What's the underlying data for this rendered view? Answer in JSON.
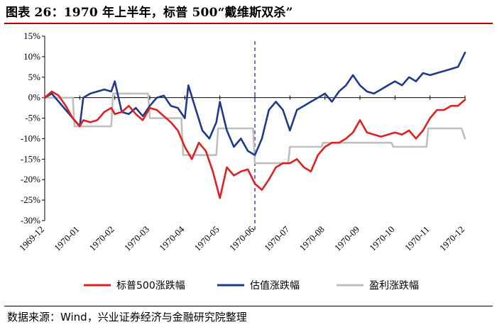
{
  "figure": {
    "title": "图表 26：1970 年上半年，标普 500“戴维斯双杀”",
    "source": "数据来源：Wind，兴业证券经济与金融研究院整理"
  },
  "chart_data": {
    "type": "line",
    "title": "",
    "xlabel": "",
    "ylabel": "",
    "x_ticks": [
      "1969-12",
      "1970-01",
      "1970-02",
      "1970-03",
      "1970-04",
      "1970-05",
      "1970-06",
      "1970-07",
      "1970-08",
      "1970-09",
      "1970-10",
      "1970-11",
      "1970-12"
    ],
    "y_ticks": [
      "15%",
      "10%",
      "5%",
      "0%",
      "-5%",
      "-10%",
      "-15%",
      "-20%",
      "-25%",
      "-30%"
    ],
    "y_unit": "%",
    "ylim": [
      -30,
      15
    ],
    "grid": false,
    "legend_position": "bottom",
    "vertical_marker": {
      "x": 6.0,
      "style": "dashed",
      "color": "#7030a0"
    },
    "series": [
      {
        "name": "标普500涨跌幅",
        "color": "#e02020",
        "x": [
          0,
          0.2,
          0.4,
          0.6,
          0.8,
          1.0,
          1.1,
          1.3,
          1.5,
          1.7,
          1.9,
          2.0,
          2.2,
          2.4,
          2.6,
          2.8,
          3.0,
          3.2,
          3.4,
          3.6,
          3.8,
          4.0,
          4.2,
          4.4,
          4.6,
          4.8,
          5.0,
          5.2,
          5.4,
          5.6,
          5.8,
          6.0,
          6.2,
          6.4,
          6.6,
          6.8,
          7.0,
          7.2,
          7.4,
          7.6,
          7.8,
          8.0,
          8.2,
          8.4,
          8.6,
          8.8,
          9.0,
          9.2,
          9.4,
          9.6,
          9.8,
          10.0,
          10.2,
          10.4,
          10.6,
          10.8,
          11.0,
          11.2,
          11.4,
          11.6,
          11.8,
          12.0
        ],
        "values": [
          0,
          1.5,
          0.5,
          -2,
          -5,
          -7,
          -5.5,
          -6,
          -5.5,
          -3.5,
          -2.5,
          -4,
          -3.5,
          -2,
          -4,
          -5.5,
          -2.5,
          -3,
          -4.5,
          -6,
          -8,
          -12,
          -15,
          -11,
          -13,
          -18,
          -24.5,
          -17,
          -19,
          -18,
          -17.5,
          -21,
          -22.5,
          -20,
          -17,
          -16,
          -16,
          -15,
          -17,
          -18,
          -14,
          -12,
          -11,
          -11,
          -10,
          -8.5,
          -5.5,
          -8.5,
          -9,
          -9.5,
          -9,
          -8.5,
          -9,
          -8,
          -10,
          -8,
          -5,
          -3,
          -3,
          -2,
          -2,
          -0.5
        ]
      },
      {
        "name": "估值涨跌幅",
        "color": "#1f3a8a",
        "x": [
          0,
          0.2,
          0.4,
          0.6,
          0.8,
          1.0,
          1.1,
          1.3,
          1.5,
          1.7,
          1.9,
          2.0,
          2.2,
          2.4,
          2.6,
          2.8,
          3.0,
          3.2,
          3.4,
          3.6,
          3.8,
          4.0,
          4.1,
          4.3,
          4.5,
          4.7,
          4.9,
          5.0,
          5.2,
          5.4,
          5.6,
          5.8,
          6.0,
          6.2,
          6.4,
          6.6,
          6.8,
          7.0,
          7.2,
          7.4,
          7.6,
          7.8,
          8.0,
          8.2,
          8.4,
          8.6,
          8.8,
          9.0,
          9.2,
          9.4,
          9.6,
          9.8,
          10.0,
          10.2,
          10.4,
          10.6,
          10.8,
          11.0,
          11.2,
          11.4,
          11.6,
          11.8,
          12.0
        ],
        "values": [
          0,
          1,
          -1,
          -3,
          -5,
          -7,
          0,
          1,
          1.5,
          2,
          1.5,
          4,
          -3.5,
          -4,
          -2.5,
          -4.5,
          -2,
          0,
          0.5,
          -2,
          -2.5,
          -5,
          3,
          -2.5,
          -8,
          -10,
          -6,
          -1,
          -8,
          -12,
          -10,
          -13,
          -14,
          -10,
          -3,
          -1,
          -3,
          -8,
          -3,
          -2,
          -1,
          0,
          1,
          -1,
          1.5,
          3,
          5.5,
          3,
          1.5,
          1,
          2,
          3,
          4,
          3,
          5,
          4,
          6,
          5.5,
          6,
          6.5,
          7,
          7.5,
          11
        ]
      },
      {
        "name": "盈利涨跌幅",
        "color": "#bfbfbf",
        "x": [
          0,
          0.8,
          0.85,
          1.9,
          1.95,
          2.95,
          3.0,
          3.9,
          3.95,
          4.9,
          4.95,
          5.95,
          6.0,
          6.95,
          7.0,
          7.9,
          7.95,
          8.8,
          8.85,
          9.9,
          9.95,
          10.9,
          10.95,
          11.9,
          12.0
        ],
        "values": [
          0,
          0,
          -7,
          -7,
          1,
          1,
          -5,
          -5,
          -14,
          -14,
          -7.5,
          -7.5,
          -16,
          -16,
          -12,
          -12,
          -11,
          -11,
          -11,
          -11,
          -12,
          -12,
          -7.5,
          -7.5,
          -10
        ]
      }
    ]
  }
}
